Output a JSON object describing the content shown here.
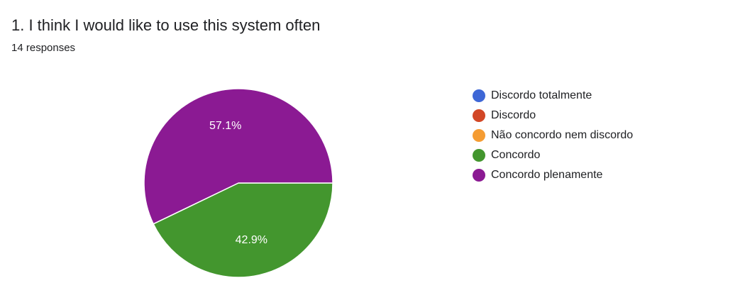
{
  "question": {
    "title": "1. I think I would like to use this system often",
    "response_count": "14 responses"
  },
  "chart_data": {
    "type": "pie",
    "title": "1. I think I would like to use this system often",
    "total_responses": 14,
    "categories": [
      "Discordo totalmente",
      "Discordo",
      "Não concordo nem discordo",
      "Concordo",
      "Concordo plenamente"
    ],
    "values": [
      0,
      0,
      0,
      6,
      8
    ],
    "percent_labels": [
      "",
      "",
      "",
      "42.9%",
      "57.1%"
    ],
    "colors": [
      "#3e67d6",
      "#d24726",
      "#f59c33",
      "#43962e",
      "#8b1a93"
    ],
    "legend_position": "right"
  }
}
